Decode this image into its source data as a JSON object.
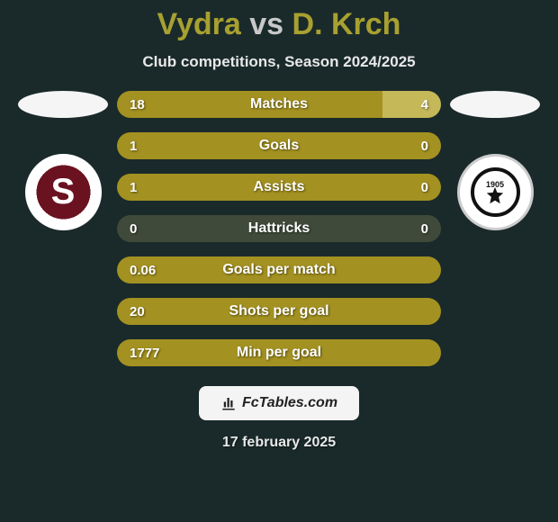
{
  "title": {
    "player1": "Vydra",
    "vs": "vs",
    "player2": "D. Krch"
  },
  "subtitle": "Club competitions, Season 2024/2025",
  "stats": {
    "rows": [
      {
        "label": "Matches",
        "left": "18",
        "right": "4",
        "left_pct": 82,
        "right_pct": 18
      },
      {
        "label": "Goals",
        "left": "1",
        "right": "0",
        "left_pct": 100,
        "right_pct": 0
      },
      {
        "label": "Assists",
        "left": "1",
        "right": "0",
        "left_pct": 100,
        "right_pct": 0
      },
      {
        "label": "Hattricks",
        "left": "0",
        "right": "0",
        "left_pct": 0,
        "right_pct": 0
      },
      {
        "label": "Goals per match",
        "left": "0.06",
        "right": "",
        "left_pct": 100,
        "right_pct": 0
      },
      {
        "label": "Shots per goal",
        "left": "20",
        "right": "",
        "left_pct": 100,
        "right_pct": 0
      },
      {
        "label": "Min per goal",
        "left": "1777",
        "right": "",
        "left_pct": 100,
        "right_pct": 0
      }
    ],
    "colors": {
      "left_fill": "#a39121",
      "right_fill": "#c4b858",
      "empty_fill": "#3f4a3a"
    }
  },
  "clubs": {
    "left": {
      "name": "sparta-praha-logo"
    },
    "right": {
      "name": "dynamo-ceske-budejovice-logo",
      "year": "1905"
    }
  },
  "footer": {
    "brand": "FcTables.com"
  },
  "date": "17 february 2025",
  "background_color": "#1a2a2a"
}
